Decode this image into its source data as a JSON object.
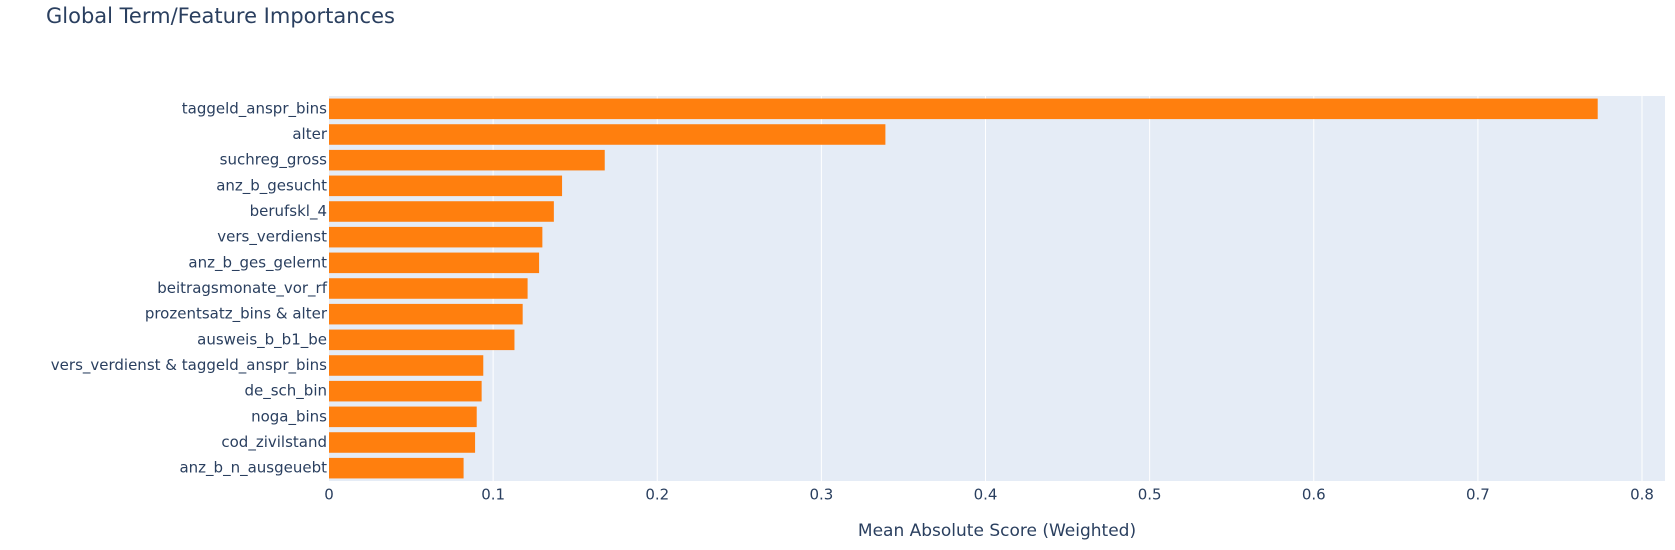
{
  "chart_data": {
    "type": "barh",
    "title": "Global Term/Feature Importances",
    "x_label": "Mean Absolute Score (Weighted)",
    "categories": [
      "taggeld_anspr_bins",
      "alter",
      "suchreg_gross",
      "anz_b_gesucht",
      "berufskl_4",
      "vers_verdienst",
      "anz_b_ges_gelernt",
      "beitragsmonate_vor_rf",
      "prozentsatz_bins & alter",
      "ausweis_b_b1_be",
      "vers_verdienst & taggeld_anspr_bins",
      "de_sch_bin",
      "noga_bins",
      "cod_zivilstand",
      "anz_b_n_ausgeuebt"
    ],
    "values": [
      0.773,
      0.339,
      0.168,
      0.142,
      0.137,
      0.13,
      0.128,
      0.121,
      0.118,
      0.113,
      0.094,
      0.093,
      0.09,
      0.089,
      0.082
    ],
    "color": "#ff7f0e",
    "xlim": [
      0,
      0.814
    ],
    "xticks": [
      0,
      0.1,
      0.2,
      0.3,
      0.4,
      0.5,
      0.6,
      0.7,
      0.8
    ],
    "grid": true
  }
}
